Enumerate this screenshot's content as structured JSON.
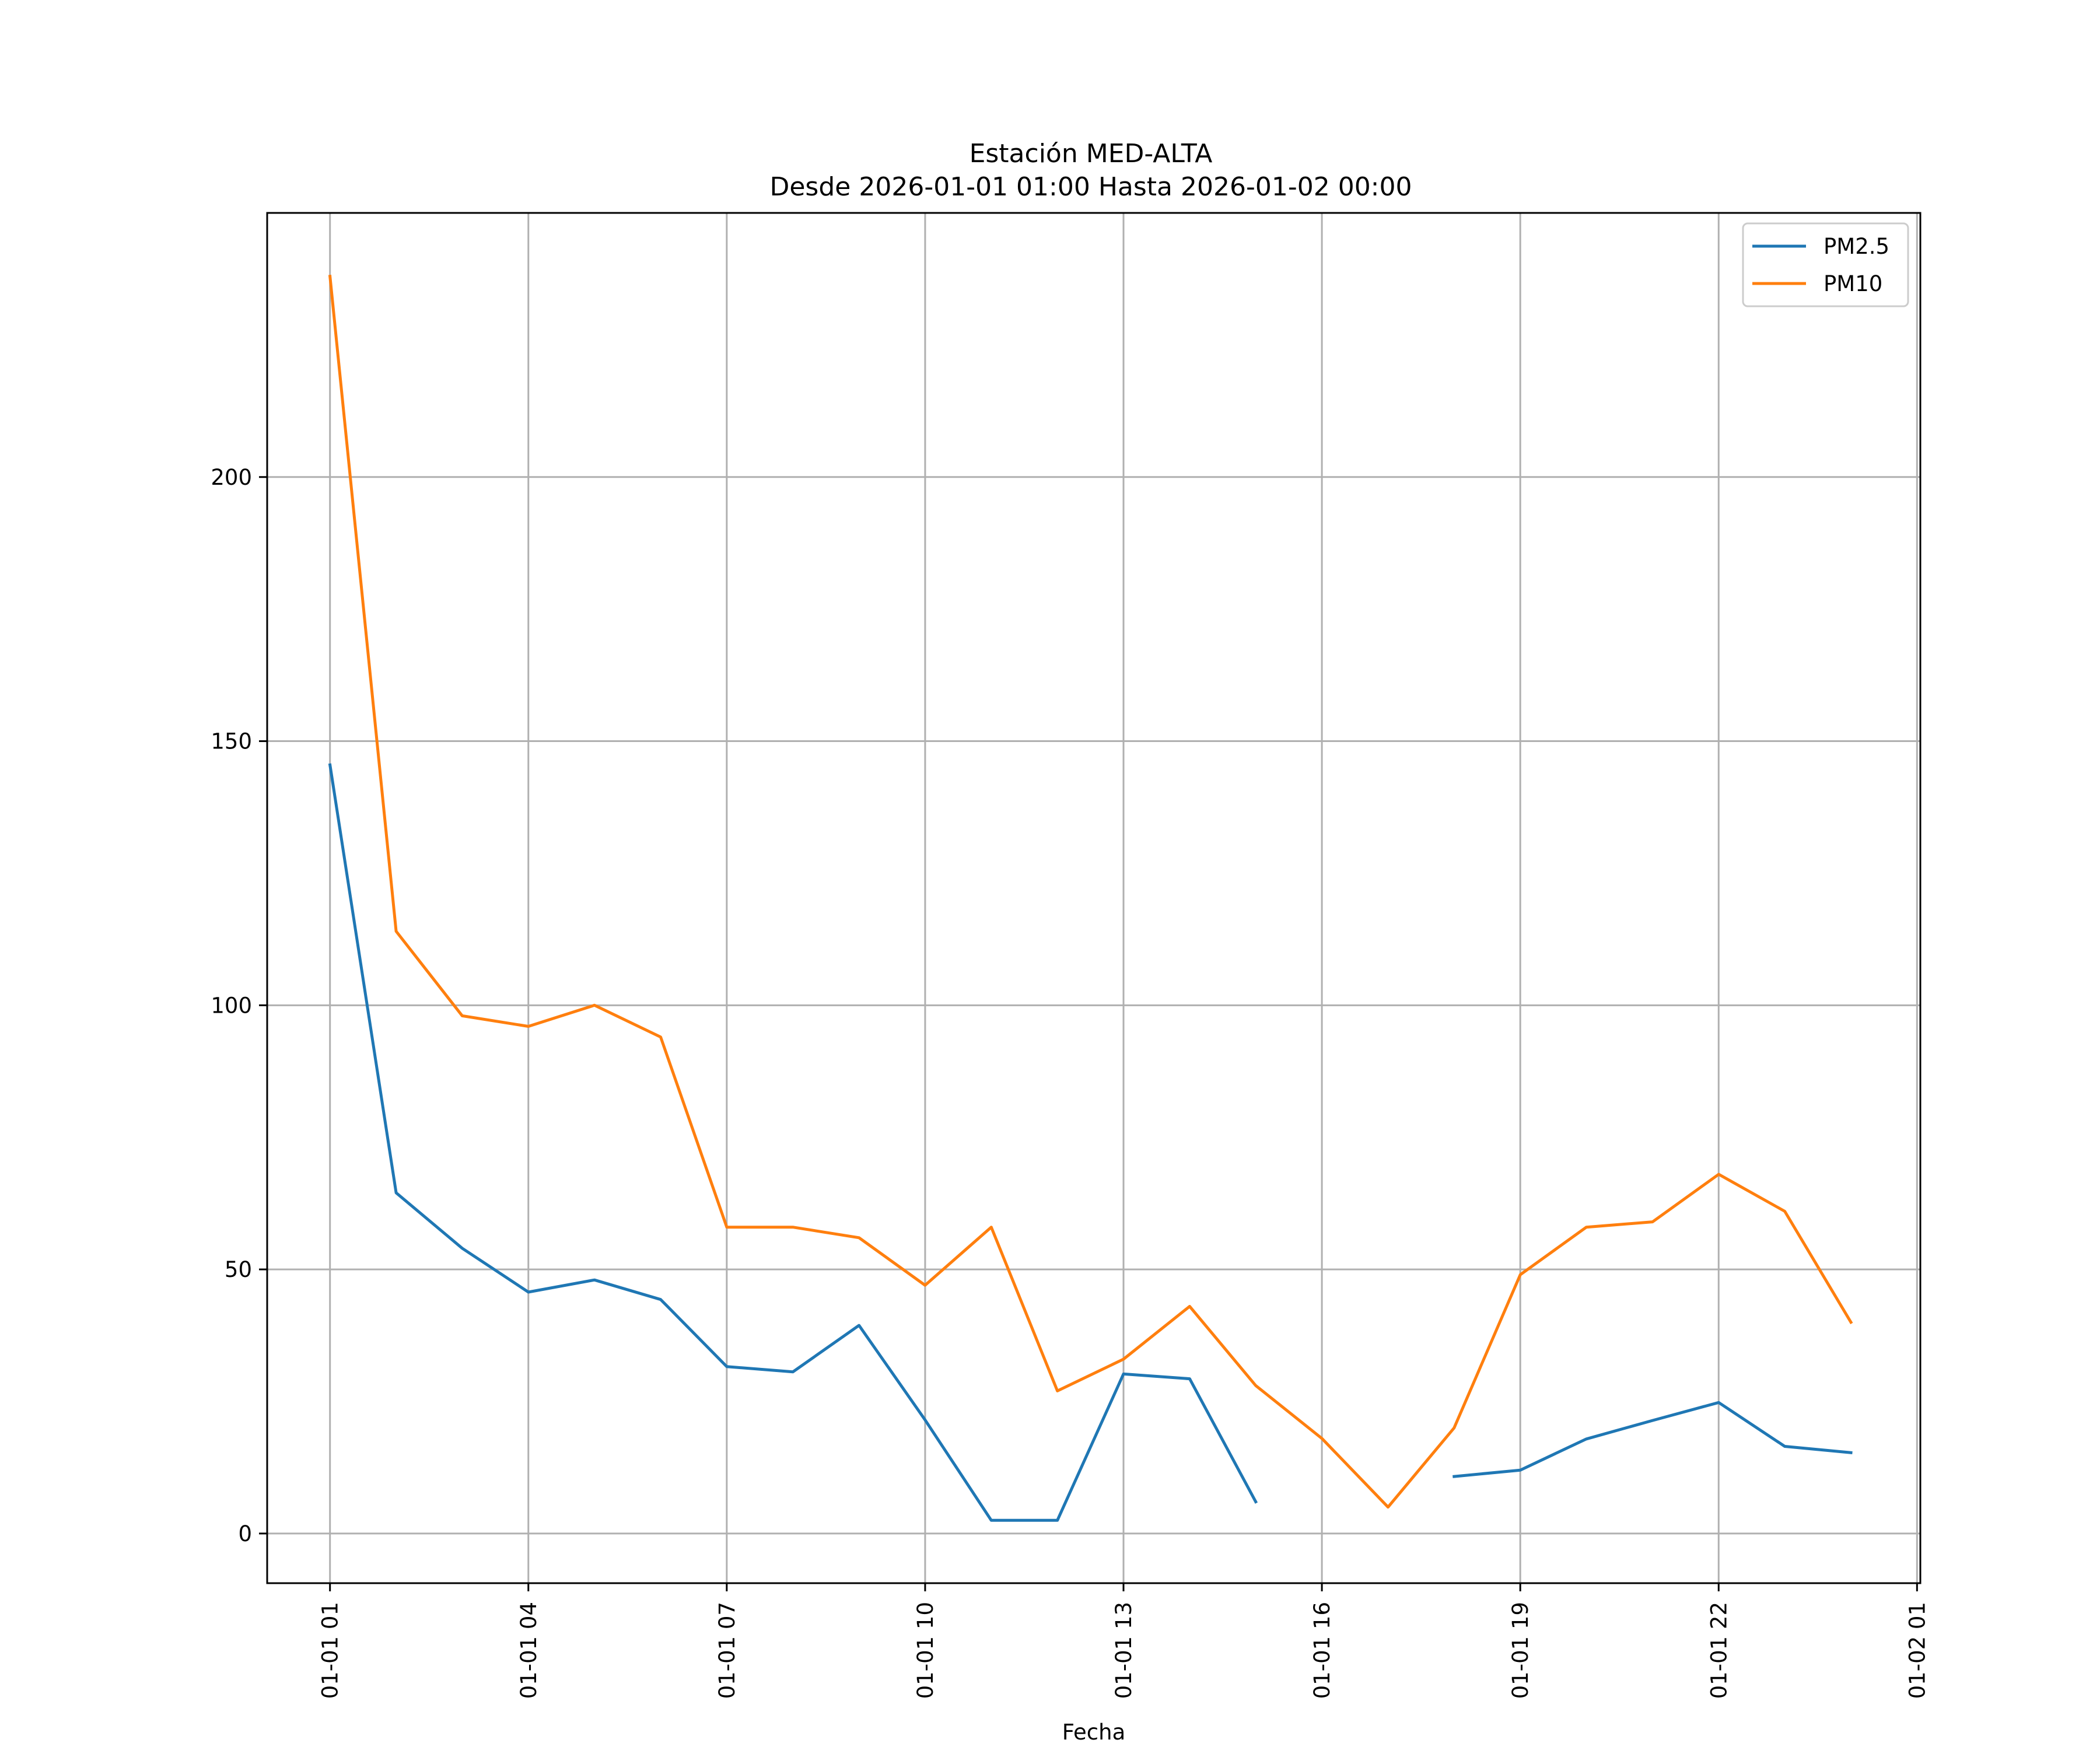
{
  "chart_data": {
    "type": "line",
    "title": "Estación MED-ALTA",
    "subtitle": "Desde 2026-01-01 01:00 Hasta 2026-01-02 00:00",
    "xlabel": "Fecha",
    "ylabel": "",
    "x": [
      "2026-01-01 01:00",
      "2026-01-01 02:00",
      "2026-01-01 03:00",
      "2026-01-01 04:00",
      "2026-01-01 05:00",
      "2026-01-01 06:00",
      "2026-01-01 07:00",
      "2026-01-01 08:00",
      "2026-01-01 09:00",
      "2026-01-01 10:00",
      "2026-01-01 11:00",
      "2026-01-01 12:00",
      "2026-01-01 13:00",
      "2026-01-01 14:00",
      "2026-01-01 15:00",
      "2026-01-01 16:00",
      "2026-01-01 17:00",
      "2026-01-01 18:00",
      "2026-01-01 19:00",
      "2026-01-01 20:00",
      "2026-01-01 21:00",
      "2026-01-01 22:00",
      "2026-01-01 23:00",
      "2026-01-02 00:00"
    ],
    "series": [
      {
        "name": "PM2.5",
        "color": "#1f77b4",
        "values": [
          145.5,
          64.5,
          54,
          45.7,
          48,
          44.3,
          31.6,
          30.6,
          39.4,
          21.5,
          2.5,
          2.5,
          30.2,
          29.3,
          6,
          null,
          null,
          10.8,
          12,
          17.9,
          21.4,
          24.8,
          16.5,
          15.3
        ]
      },
      {
        "name": "PM10",
        "color": "#ff7f0e",
        "values": [
          238,
          114,
          98,
          96,
          100,
          94,
          58,
          58,
          56,
          47,
          58,
          27,
          33,
          43,
          28,
          18,
          5,
          20,
          49,
          58,
          59,
          68,
          61,
          40
        ]
      }
    ],
    "xticks": [
      "01-01 01",
      "01-01 04",
      "01-01 07",
      "01-01 10",
      "01-01 13",
      "01-01 16",
      "01-01 19",
      "01-01 22",
      "01-02 01"
    ],
    "yticks": [
      "0",
      "50",
      "100",
      "150",
      "200"
    ],
    "ylim": [
      -9.4,
      250
    ],
    "xlim": [
      "2026-01-01 00:03",
      "2026-01-02 01:03"
    ],
    "grid": true,
    "legend_position": "top-right"
  }
}
